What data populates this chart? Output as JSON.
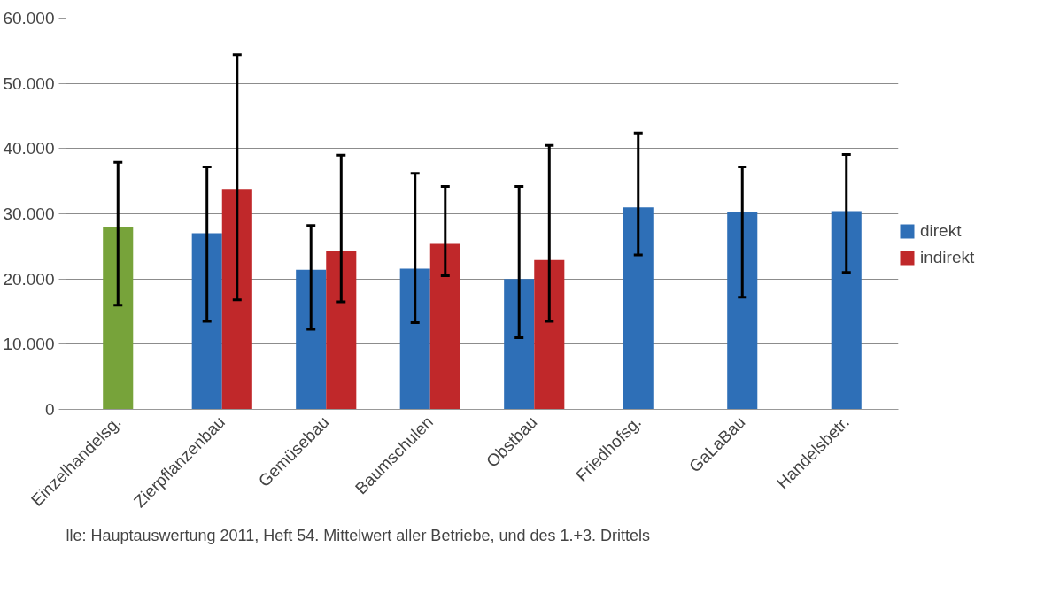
{
  "chart_data": {
    "type": "bar",
    "categories": [
      "Einzelhandelsg.",
      "Zierpflanzenbau",
      "Gemüsebau",
      "Baumschulen",
      "Obstbau",
      "Friedhofsg.",
      "GaLaBau",
      "Handelsbetr."
    ],
    "series": [
      {
        "name": "direkt",
        "color": "#2e6fb7",
        "colors": [
          "#77a33a",
          "#2e6fb7",
          "#2e6fb7",
          "#2e6fb7",
          "#2e6fb7",
          "#2e6fb7",
          "#2e6fb7",
          "#2e6fb7"
        ],
        "values": [
          28000,
          27000,
          21400,
          21600,
          20000,
          31000,
          30300,
          30400
        ],
        "errors": [
          [
            16000,
            37900
          ],
          [
            13500,
            37200
          ],
          [
            12300,
            28200
          ],
          [
            13300,
            36200
          ],
          [
            11000,
            34200
          ],
          [
            23700,
            42400
          ],
          [
            17200,
            37200
          ],
          [
            21000,
            39100
          ]
        ]
      },
      {
        "name": "indirekt",
        "color": "#c0282a",
        "values": [
          null,
          33700,
          24300,
          25400,
          22900,
          null,
          null,
          null
        ],
        "errors": [
          null,
          [
            16800,
            54400
          ],
          [
            16500,
            39000
          ],
          [
            20500,
            34200
          ],
          [
            13500,
            40500
          ],
          null,
          null,
          null
        ]
      }
    ],
    "ylim": [
      0,
      60000
    ],
    "yticks": [
      {
        "value": 0,
        "label": "0"
      },
      {
        "value": 10000,
        "label": "10.000"
      },
      {
        "value": 20000,
        "label": "20.000"
      },
      {
        "value": 30000,
        "label": "30.000"
      },
      {
        "value": 40000,
        "label": "40.000"
      },
      {
        "value": 50000,
        "label": "50.000"
      },
      {
        "value": 60000,
        "label": "60.000"
      }
    ],
    "grid": "y",
    "legend": "right",
    "annotations": [
      "lle: Hauptauswertung 2011, Heft 54. Mittelwert aller Betriebe, und des 1.+3. Drittels"
    ]
  }
}
